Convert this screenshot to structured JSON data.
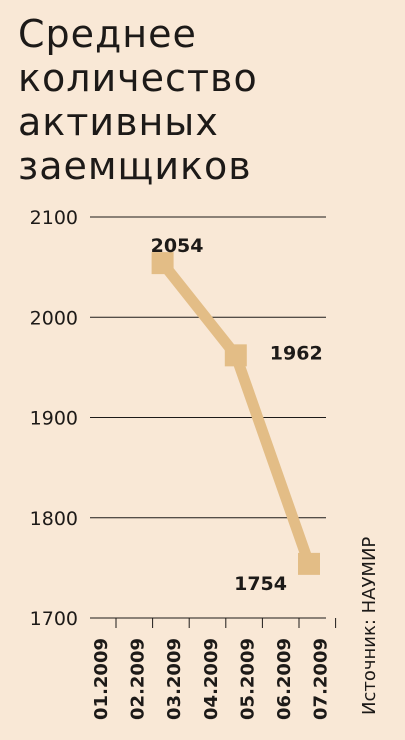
{
  "title_lines": [
    "Среднее",
    "количество",
    "активных",
    "заемщиков"
  ],
  "source": "Источник: НАУМИР",
  "colors": {
    "background": "#f9e8d6",
    "line": "#e3bd86",
    "grid": "#1d1a18",
    "text": "#1d1a18"
  },
  "chart_data": {
    "type": "line",
    "title": "Среднее количество активных заемщиков",
    "xlabel": "",
    "ylabel": "",
    "categories": [
      "01.2009",
      "02.2009",
      "03.2009",
      "04.2009",
      "05.2009",
      "06.2009",
      "07.2009"
    ],
    "ylim": [
      1700,
      2100
    ],
    "yticks": [
      1700,
      1800,
      1900,
      2000,
      2100
    ],
    "grid": true,
    "series": [
      {
        "points": [
          {
            "x": "02.2009",
            "y": 2054,
            "label": "2054"
          },
          {
            "x": "04.2009",
            "y": 1962,
            "label": "1962"
          },
          {
            "x": "06.2009",
            "y": 1754,
            "label": "1754"
          }
        ]
      }
    ]
  }
}
